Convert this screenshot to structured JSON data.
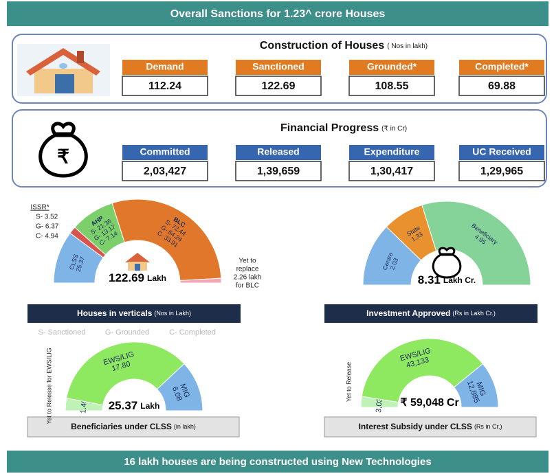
{
  "top_banner": "Overall Sanctions for 1.23^ crore Houses",
  "construction": {
    "title": "Construction of Houses",
    "unit": "( Nos in lakh)",
    "items": [
      {
        "label": "Demand",
        "value": 112.24
      },
      {
        "label": "Sanctioned",
        "value": 122.69
      },
      {
        "label": "Grounded*",
        "value": 108.55
      },
      {
        "label": "Completed*",
        "value": 69.88
      }
    ]
  },
  "financial": {
    "title": "Financial Progress",
    "unit": "(₹ in Cr)",
    "items": [
      {
        "label": "Committed",
        "value": "2,03,427"
      },
      {
        "label": "Released",
        "value": "1,39,659"
      },
      {
        "label": "Expenditure",
        "value": "1,30,417"
      },
      {
        "label": "UC Received",
        "value": "1,29,965"
      }
    ]
  },
  "legend": [
    "S- Sanctioned",
    "G- Grounded",
    "C- Completed"
  ],
  "gauges": [
    {
      "title": "Houses in verticals",
      "unit": "(Nos in Lakh)",
      "center_value": 122.69,
      "center_unit": "Lakh",
      "segments": [
        {
          "name": "CLSS",
          "value": 25.37,
          "color": "#7fb4e6"
        },
        {
          "name": "ISSR*",
          "value": 3.52,
          "lines": [
            "S- 3.52",
            "G- 6.37",
            "C- 4.94"
          ],
          "color": "#d9534f"
        },
        {
          "name": "AHP",
          "value": 21.36,
          "lines": [
            "S- 21.36",
            "G- 13.17",
            "C- 7.14"
          ],
          "color": "#7ccf6a"
        },
        {
          "name": "BLC",
          "value": 72.44,
          "lines": [
            "S- 72.44",
            "G- 64.24",
            "C- 33.91"
          ],
          "color": "#e0772a"
        },
        {
          "value": 2.26,
          "note": [
            "Yet to",
            "replace",
            "2.26 lakh",
            "for BLC"
          ],
          "color": "#f4a6b5"
        }
      ]
    },
    {
      "title": "Investment Approved",
      "unit": "(Rs in Lakh Cr.)",
      "center_value": 8.31,
      "center_unit": "Lakh Cr.",
      "segments": [
        {
          "name": "Centre",
          "value": 2.03,
          "color": "#7fb4e6"
        },
        {
          "name": "State",
          "value": 1.33,
          "color": "#e8912e"
        },
        {
          "name": "Beneficiary",
          "value": 4.95,
          "color": "#86d39a"
        }
      ]
    },
    {
      "title": "Beneficiaries under CLSS",
      "unit": "(in lakh)",
      "center_value": 25.37,
      "center_unit": "Lakh",
      "segments": [
        {
          "name": "Yet to Release for EWS/LIG",
          "value": 1.49,
          "color": "#bff2b6"
        },
        {
          "name": "EWS/LIG",
          "value": 17.8,
          "value_label": "17.80",
          "color": "#8ee860"
        },
        {
          "name": "MIG",
          "value": 6.08,
          "color": "#7fb4e6"
        }
      ]
    },
    {
      "title": "Interest Subsidy under CLSS",
      "unit": "(Rs in Cr.)",
      "center_value": "₹ 59,048",
      "center_unit": "Cr",
      "segments": [
        {
          "name": "Yet to Release",
          "value": 3030,
          "value_label": "3,030",
          "color": "#bff2b6"
        },
        {
          "name": "EWS/LIG",
          "value": 43133,
          "value_label": "43,133",
          "color": "#8ee860"
        },
        {
          "name": "MIG",
          "value": 12885,
          "value_label": "12,885",
          "color": "#7fb4e6"
        }
      ]
    }
  ],
  "bottom_banner": "16 lakh houses are being constructed using New Technologies"
}
